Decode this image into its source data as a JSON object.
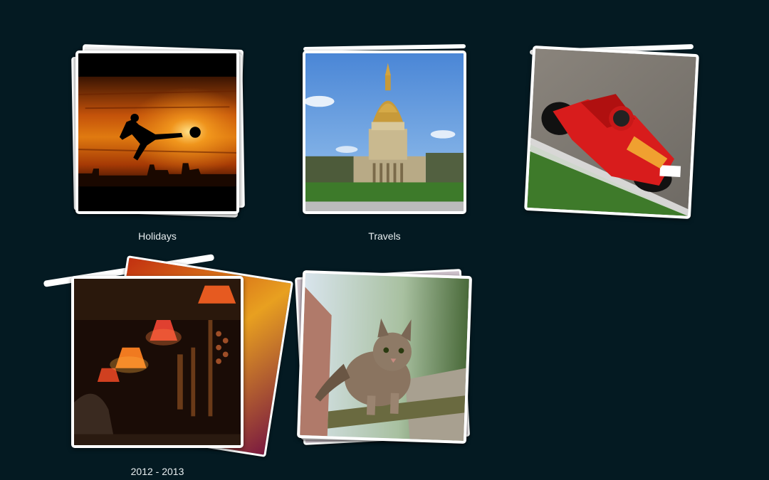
{
  "albums": [
    {
      "caption": "Holidays",
      "image": "sunset-soccer-silhouette"
    },
    {
      "caption": "Travels",
      "image": "domed-church-building"
    },
    {
      "caption": "",
      "image": "motorcycle-racer"
    },
    {
      "caption": "2012 - 2013",
      "image": "lamp-shop-interior"
    },
    {
      "caption": "",
      "image": "tabby-cat-on-fence"
    }
  ]
}
